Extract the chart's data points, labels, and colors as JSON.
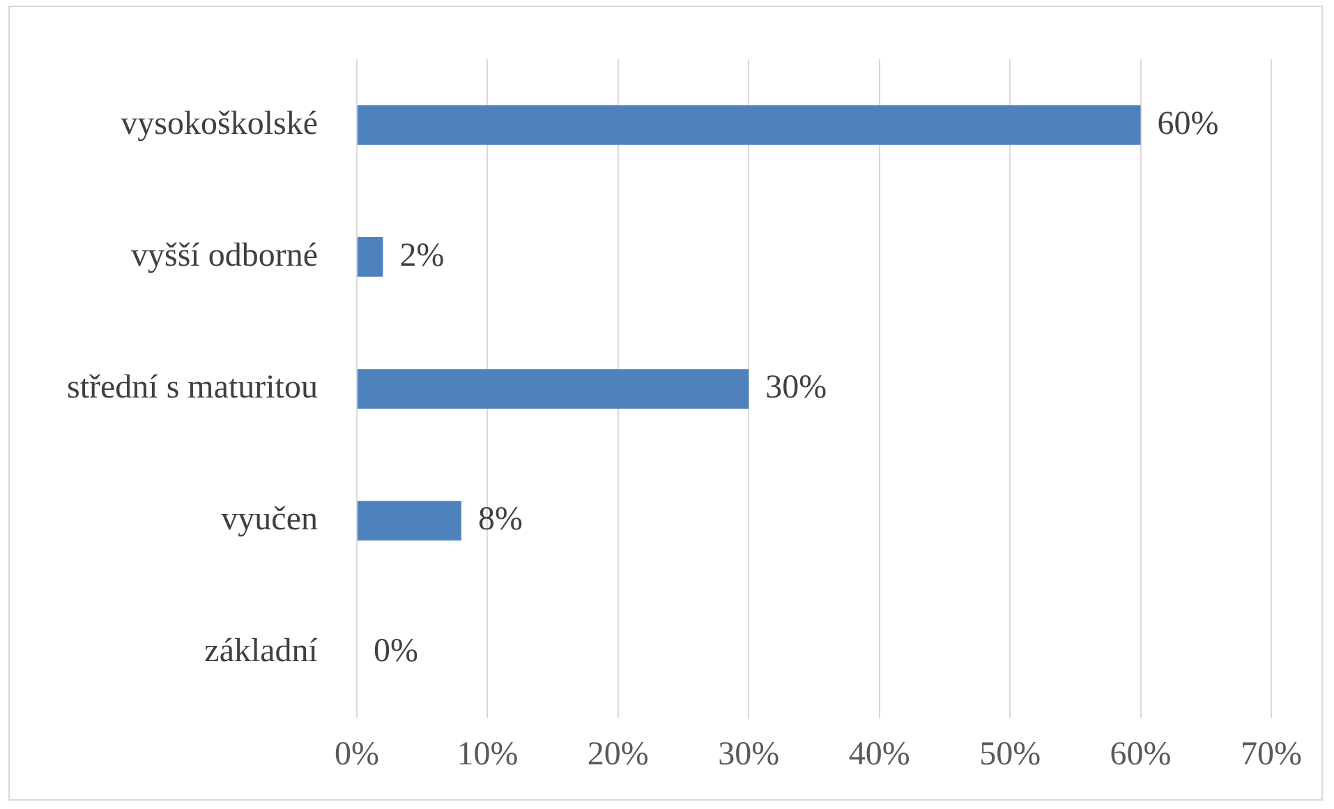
{
  "chart_data": {
    "type": "bar",
    "orientation": "horizontal",
    "categories": [
      "vysokoškolské",
      "vyšší odborné",
      "střední s maturitou",
      "vyučen",
      "základní"
    ],
    "values": [
      60,
      2,
      30,
      8,
      0
    ],
    "value_labels": [
      "60%",
      "2%",
      "30%",
      "8%",
      "0%"
    ],
    "color": "#4f81bd",
    "xlim": [
      0,
      70
    ],
    "xticks": [
      {
        "value": 0,
        "label": "0%"
      },
      {
        "value": 10,
        "label": "10%"
      },
      {
        "value": 20,
        "label": "20%"
      },
      {
        "value": 30,
        "label": "30%"
      },
      {
        "value": 40,
        "label": "40%"
      },
      {
        "value": 50,
        "label": "50%"
      },
      {
        "value": 60,
        "label": "60%"
      },
      {
        "value": 70,
        "label": "70%"
      }
    ],
    "grid": "x",
    "legend": false
  }
}
